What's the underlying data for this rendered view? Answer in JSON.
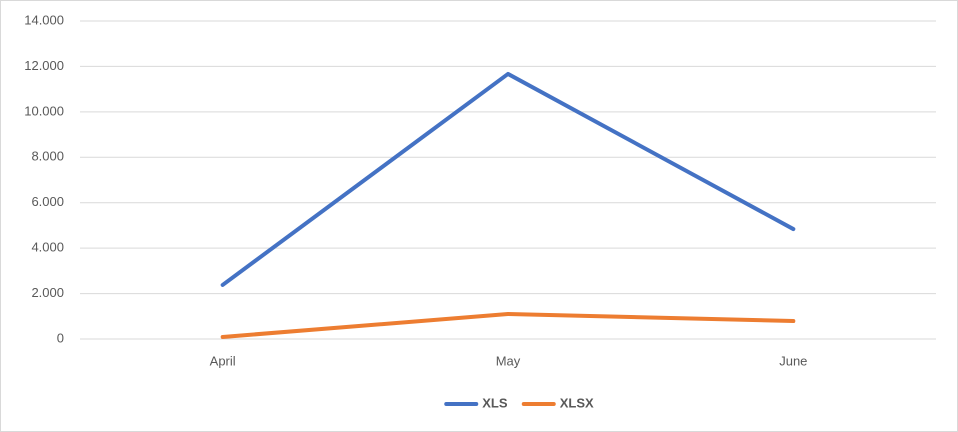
{
  "chart_data": {
    "type": "line",
    "categories": [
      "April",
      "May",
      "June"
    ],
    "series": [
      {
        "name": "XLS",
        "color": "#4472c4",
        "values": [
          2380,
          11670,
          4840
        ]
      },
      {
        "name": "XLSX",
        "color": "#ed7d31",
        "values": [
          90,
          1100,
          790
        ]
      }
    ],
    "ylim": [
      0,
      14000
    ],
    "yticks": [
      0,
      {
        "value": 2000,
        "label": "2.000"
      },
      {
        "value": 4000,
        "label": "4.000"
      },
      {
        "value": 6000,
        "label": "6.000"
      },
      {
        "value": 8000,
        "label": "8.000"
      },
      {
        "value": 10000,
        "label": "10.000"
      },
      {
        "value": 12000,
        "label": "12.000"
      },
      {
        "value": 14000,
        "label": "14.000"
      }
    ],
    "grid": true,
    "legend": "bottom"
  }
}
